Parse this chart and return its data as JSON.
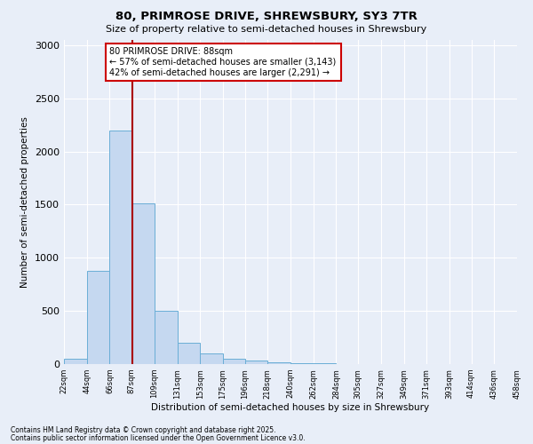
{
  "title1": "80, PRIMROSE DRIVE, SHREWSBURY, SY3 7TR",
  "title2": "Size of property relative to semi-detached houses in Shrewsbury",
  "xlabel": "Distribution of semi-detached houses by size in Shrewsbury",
  "ylabel": "Number of semi-detached properties",
  "bar_color": "#c5d8f0",
  "bar_edge_color": "#6aaed6",
  "background_color": "#e8eef8",
  "grid_color": "#ffffff",
  "bin_edges": [
    22,
    44,
    66,
    87,
    109,
    131,
    153,
    175,
    196,
    218,
    240,
    262,
    284,
    305,
    327,
    349,
    371,
    393,
    414,
    436,
    458
  ],
  "bin_labels": [
    "22sqm",
    "44sqm",
    "66sqm",
    "87sqm",
    "109sqm",
    "131sqm",
    "153sqm",
    "175sqm",
    "196sqm",
    "218sqm",
    "240sqm",
    "262sqm",
    "284sqm",
    "305sqm",
    "327sqm",
    "349sqm",
    "371sqm",
    "393sqm",
    "414sqm",
    "436sqm",
    "458sqm"
  ],
  "bar_heights": [
    50,
    880,
    2200,
    1510,
    500,
    200,
    100,
    50,
    30,
    20,
    10,
    5,
    3,
    2,
    1,
    1,
    0,
    0,
    0,
    0
  ],
  "property_size": 88,
  "property_line_color": "#aa0000",
  "annotation_text": "80 PRIMROSE DRIVE: 88sqm\n← 57% of semi-detached houses are smaller (3,143)\n42% of semi-detached houses are larger (2,291) →",
  "annotation_box_color": "#ffffff",
  "annotation_border_color": "#cc0000",
  "ylim": [
    0,
    3050
  ],
  "yticks": [
    0,
    500,
    1000,
    1500,
    2000,
    2500,
    3000
  ],
  "footer1": "Contains HM Land Registry data © Crown copyright and database right 2025.",
  "footer2": "Contains public sector information licensed under the Open Government Licence v3.0."
}
